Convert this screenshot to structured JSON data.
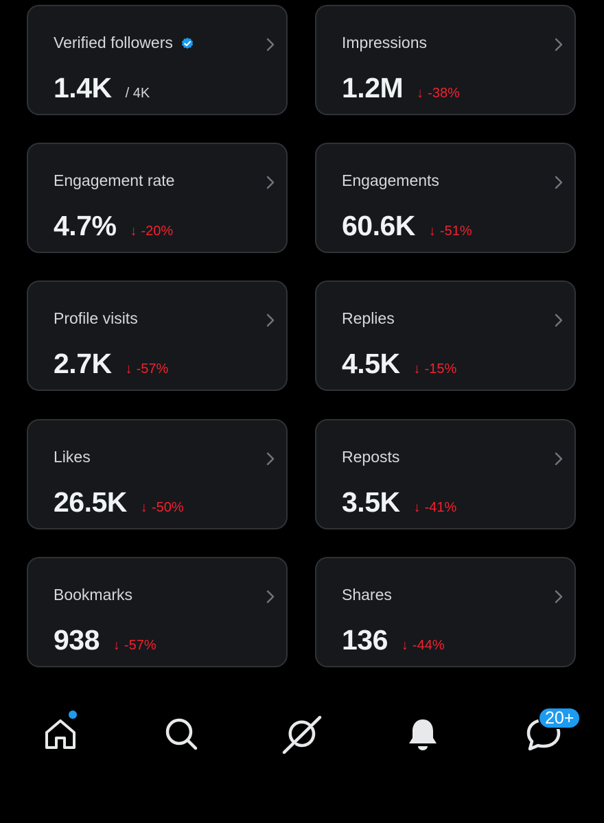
{
  "colors": {
    "background": "#000000",
    "card": "#16181c",
    "card_border": "#2f3336",
    "negative": "#f4212e",
    "accent": "#1d9bf0"
  },
  "metrics": [
    {
      "label": "Verified followers",
      "value": "1.4K",
      "sub": "/ 4K",
      "verified_icon": "verified-badge-icon"
    },
    {
      "label": "Impressions",
      "value": "1.2M",
      "change": "-38%",
      "arrow": "↓"
    },
    {
      "label": "Engagement rate",
      "value": "4.7%",
      "change": "-20%",
      "arrow": "↓"
    },
    {
      "label": "Engagements",
      "value": "60.6K",
      "change": "-51%",
      "arrow": "↓"
    },
    {
      "label": "Profile visits",
      "value": "2.7K",
      "change": "-57%",
      "arrow": "↓"
    },
    {
      "label": "Replies",
      "value": "4.5K",
      "change": "-15%",
      "arrow": "↓"
    },
    {
      "label": "Likes",
      "value": "26.5K",
      "change": "-50%",
      "arrow": "↓"
    },
    {
      "label": "Reposts",
      "value": "3.5K",
      "change": "-41%",
      "arrow": "↓"
    },
    {
      "label": "Bookmarks",
      "value": "938",
      "change": "-57%",
      "arrow": "↓"
    },
    {
      "label": "Shares",
      "value": "136",
      "change": "-44%",
      "arrow": "↓"
    }
  ],
  "nav": {
    "items": [
      "home-icon",
      "search-icon",
      "grok-icon",
      "bell-icon",
      "messages-icon"
    ],
    "messages_badge": "20+"
  }
}
